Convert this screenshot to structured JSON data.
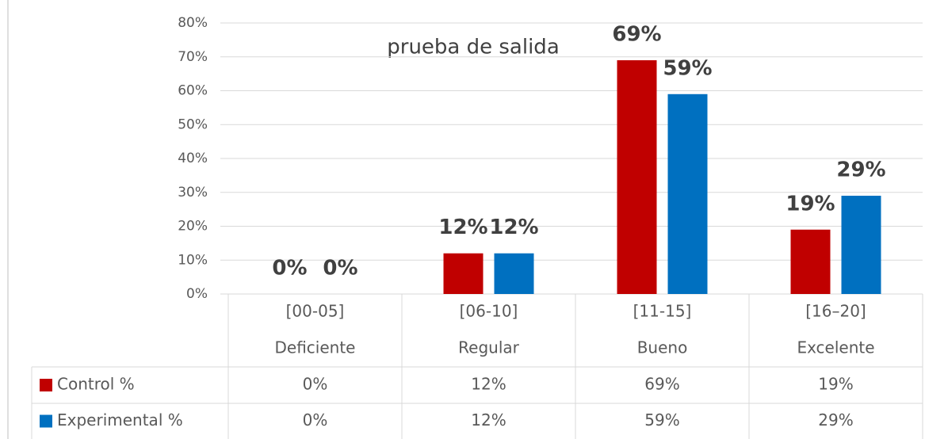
{
  "chart_data": {
    "type": "bar",
    "title": "prueba de salida",
    "categories": [
      "[00-05]",
      "[06-10]",
      "[11-15]",
      "[16–20]"
    ],
    "category_subtitles": [
      "Deficiente",
      "Regular",
      "Bueno",
      "Excelente"
    ],
    "series": [
      {
        "name": "Control %",
        "color": "#c00000",
        "values": [
          0,
          12,
          69,
          19
        ],
        "value_labels": [
          "0%",
          "12%",
          "69%",
          "19%"
        ]
      },
      {
        "name": "Experimental %",
        "color": "#0070c0",
        "values": [
          0,
          12,
          59,
          29
        ],
        "value_labels": [
          "0%",
          "12%",
          "59%",
          "29%"
        ]
      }
    ],
    "ylim": [
      0,
      80
    ],
    "yticks": [
      {
        "value": 0,
        "label": "0%"
      },
      {
        "value": 10,
        "label": "10%"
      },
      {
        "value": 20,
        "label": "20%"
      },
      {
        "value": 30,
        "label": "30%"
      },
      {
        "value": 40,
        "label": "40%"
      },
      {
        "value": 50,
        "label": "50%"
      },
      {
        "value": 60,
        "label": "60%"
      },
      {
        "value": 70,
        "label": "70%"
      },
      {
        "value": 80,
        "label": "80%"
      }
    ],
    "grid": true
  }
}
